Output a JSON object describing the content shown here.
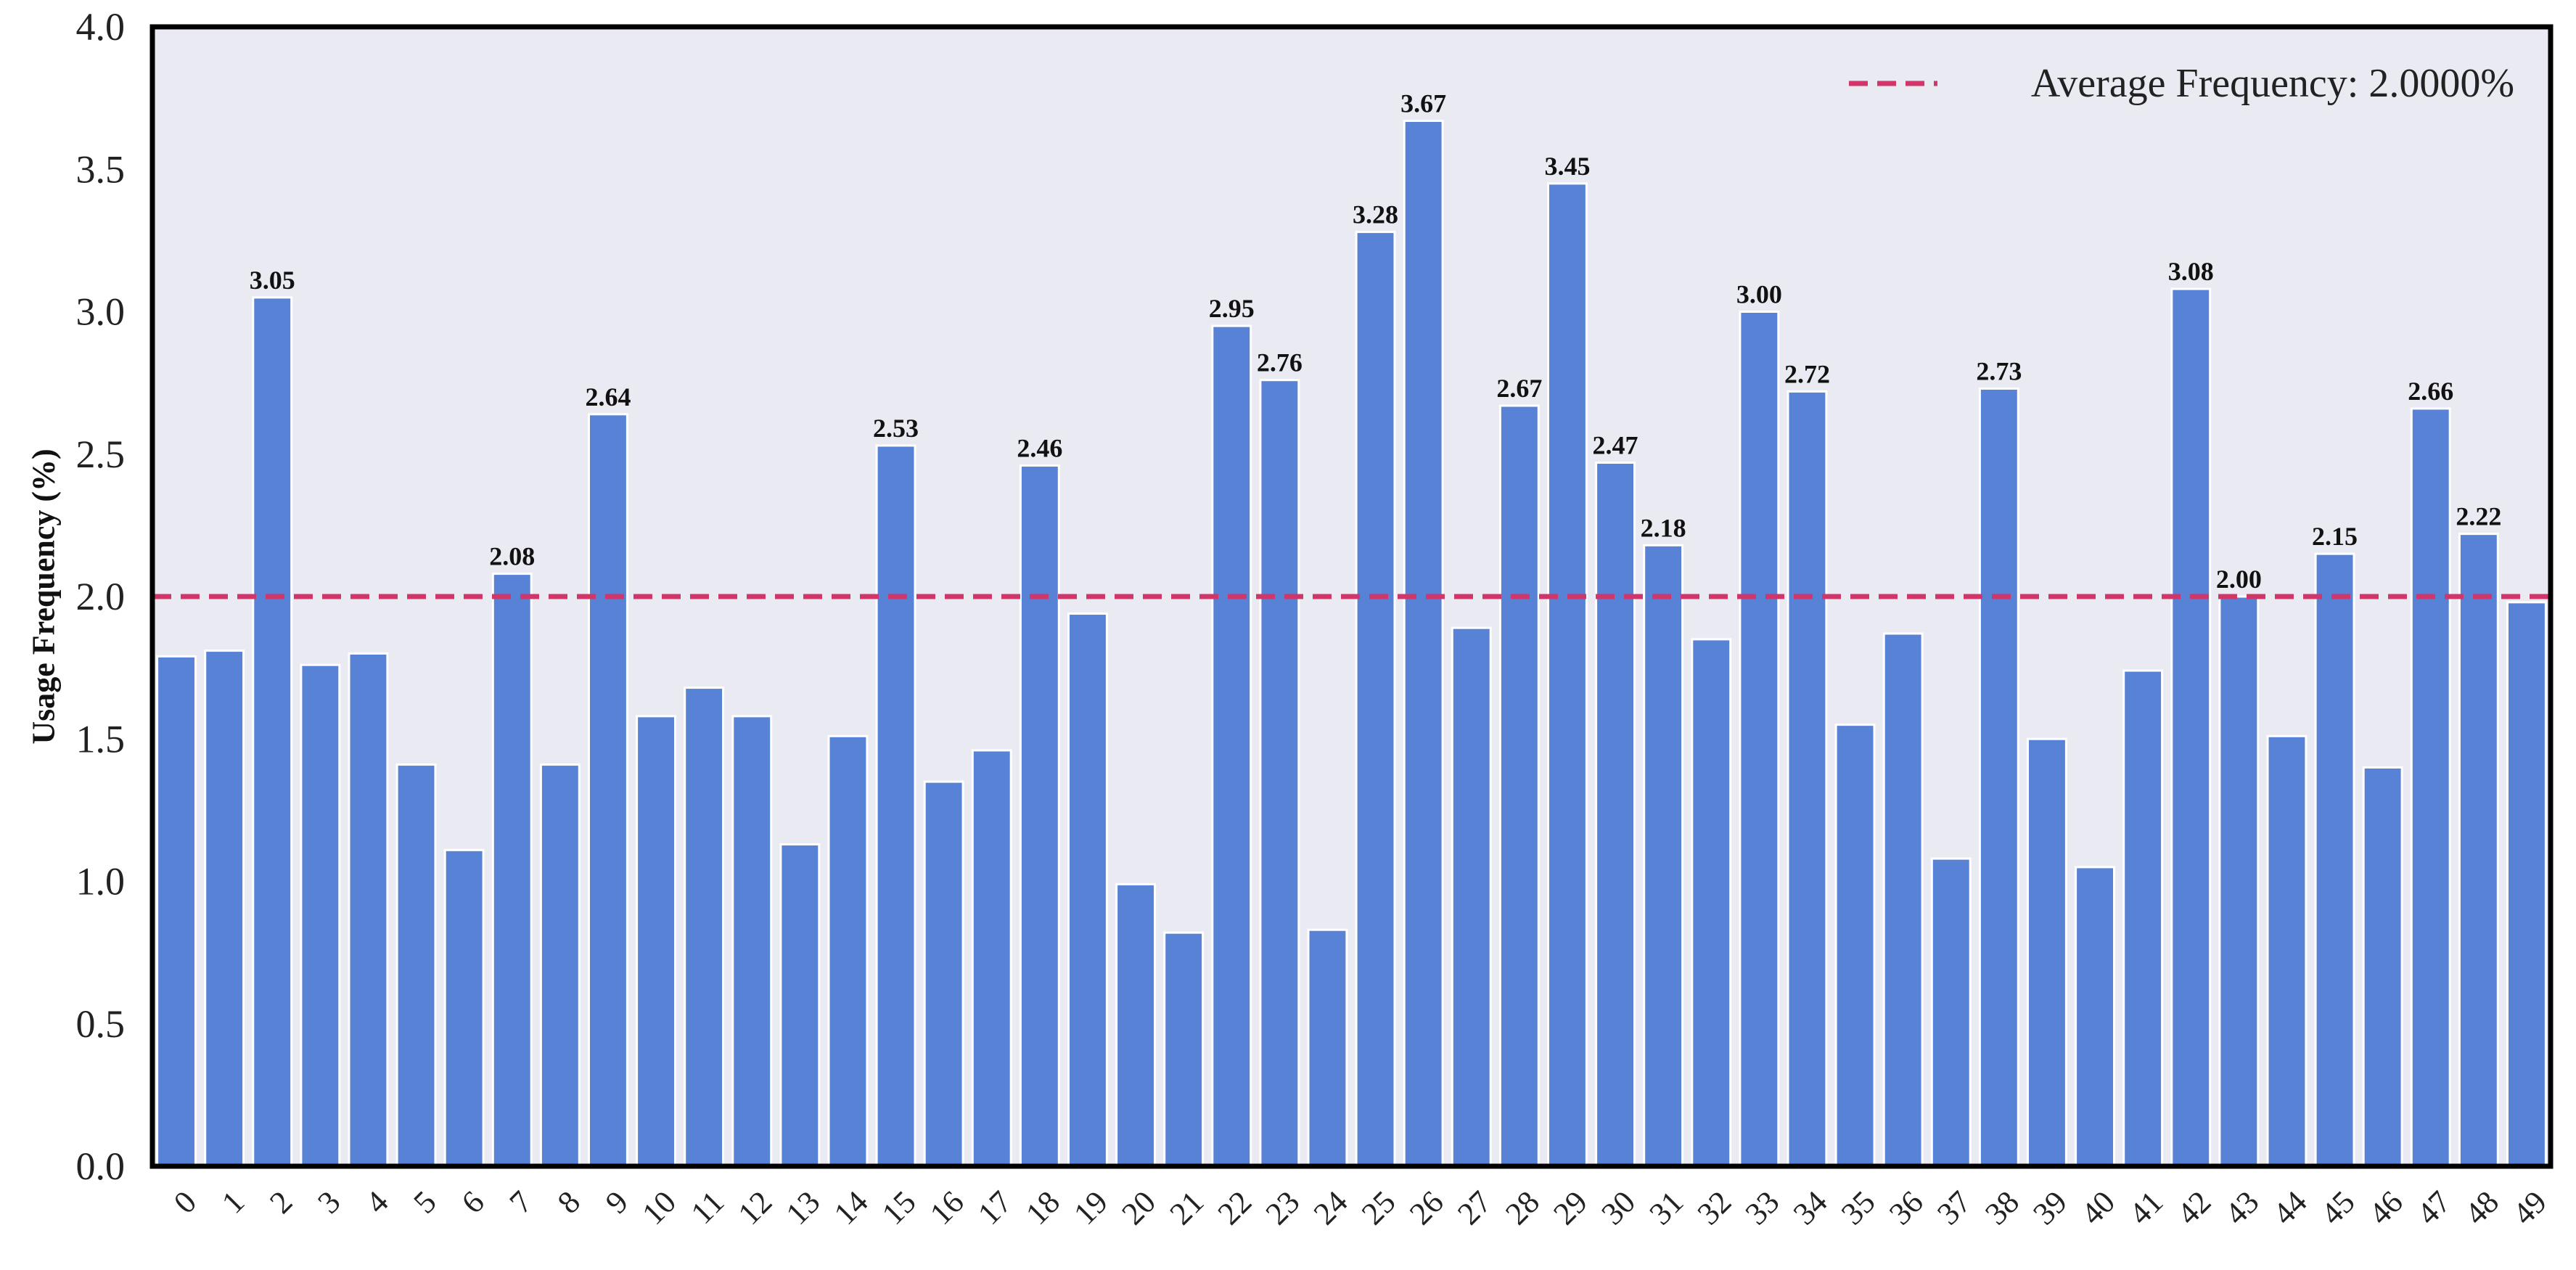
{
  "chart_data": {
    "type": "bar",
    "title": "",
    "xlabel": "",
    "ylabel": "Usage Frequency (%)",
    "ylim": [
      0,
      4.0
    ],
    "yticks": [
      "0.0",
      "0.5",
      "1.0",
      "1.5",
      "2.0",
      "2.5",
      "3.0",
      "3.5",
      "4.0"
    ],
    "categories": [
      "0",
      "1",
      "2",
      "3",
      "4",
      "5",
      "6",
      "7",
      "8",
      "9",
      "10",
      "11",
      "12",
      "13",
      "14",
      "15",
      "16",
      "17",
      "18",
      "19",
      "20",
      "21",
      "22",
      "23",
      "24",
      "25",
      "26",
      "27",
      "28",
      "29",
      "30",
      "31",
      "32",
      "33",
      "34",
      "35",
      "36",
      "37",
      "38",
      "39",
      "40",
      "41",
      "42",
      "43",
      "44",
      "45",
      "46",
      "47",
      "48",
      "49"
    ],
    "values": [
      1.79,
      1.81,
      3.05,
      1.76,
      1.8,
      1.41,
      1.11,
      2.08,
      1.41,
      2.64,
      1.58,
      1.68,
      1.58,
      1.13,
      1.51,
      2.53,
      1.35,
      1.46,
      2.46,
      1.94,
      0.99,
      0.82,
      2.95,
      2.76,
      0.83,
      3.28,
      3.67,
      1.89,
      2.67,
      3.45,
      2.47,
      2.18,
      1.85,
      3.0,
      2.72,
      1.55,
      1.87,
      1.08,
      2.73,
      1.5,
      1.05,
      1.74,
      3.08,
      2.0,
      1.51,
      2.15,
      1.4,
      2.66,
      2.22,
      1.98
    ],
    "bar_labels": [
      {
        "index": 2,
        "text": "3.05"
      },
      {
        "index": 7,
        "text": "2.08"
      },
      {
        "index": 9,
        "text": "2.64"
      },
      {
        "index": 15,
        "text": "2.53"
      },
      {
        "index": 18,
        "text": "2.46"
      },
      {
        "index": 22,
        "text": "2.95"
      },
      {
        "index": 23,
        "text": "2.76"
      },
      {
        "index": 25,
        "text": "3.28"
      },
      {
        "index": 26,
        "text": "3.67"
      },
      {
        "index": 28,
        "text": "2.67"
      },
      {
        "index": 29,
        "text": "3.45"
      },
      {
        "index": 30,
        "text": "2.47"
      },
      {
        "index": 31,
        "text": "2.18"
      },
      {
        "index": 33,
        "text": "3.00"
      },
      {
        "index": 34,
        "text": "2.72"
      },
      {
        "index": 38,
        "text": "2.73"
      },
      {
        "index": 42,
        "text": "3.08"
      },
      {
        "index": 43,
        "text": "2.00"
      },
      {
        "index": 45,
        "text": "2.15"
      },
      {
        "index": 47,
        "text": "2.66"
      },
      {
        "index": 48,
        "text": "2.22"
      }
    ],
    "average_line": {
      "value": 2.0,
      "label": "Average Frequency: 2.0000%"
    },
    "legend_placement": "top-right",
    "grid": false,
    "colors": {
      "bar": "#5882D5",
      "average_line": "#D0366A",
      "plot_bg": "#EAEAF2",
      "frame": "#000000"
    }
  }
}
